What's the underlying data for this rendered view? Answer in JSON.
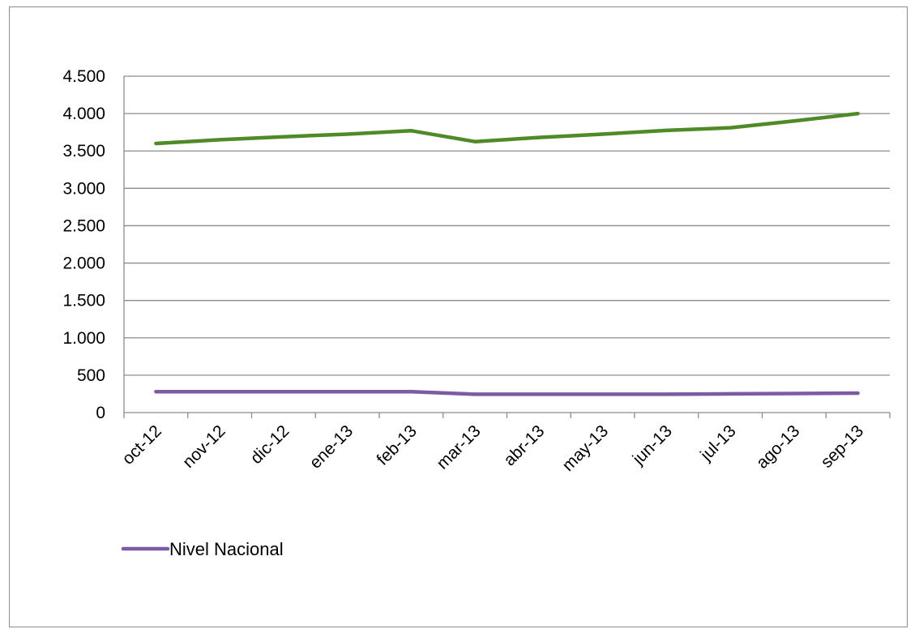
{
  "chart_data": {
    "type": "line",
    "title": "",
    "xlabel": "",
    "ylabel": "",
    "categories": [
      "oct-12",
      "nov-12",
      "dic-12",
      "ene-13",
      "feb-13",
      "mar-13",
      "abr-13",
      "may-13",
      "jun-13",
      "jul-13",
      "ago-13",
      "sep-13"
    ],
    "ylim": [
      0,
      4500
    ],
    "y_ticks": [
      0,
      500,
      1000,
      1500,
      2000,
      2500,
      3000,
      3500,
      4000,
      4500
    ],
    "y_tick_labels": [
      "0",
      "500",
      "1.000",
      "1.500",
      "2.000",
      "2.500",
      "3.000",
      "3.500",
      "4.000",
      "4.500"
    ],
    "grid": "horizontal",
    "legend_position": "bottom-left",
    "series": [
      {
        "name": "",
        "color": "#4e8a26",
        "values": [
          3600,
          3650,
          3690,
          3725,
          3770,
          3625,
          3680,
          3725,
          3775,
          3810,
          3900,
          4000
        ]
      },
      {
        "name": "Nivel Nacional",
        "color": "#7b5ba3",
        "values": [
          280,
          280,
          280,
          280,
          280,
          245,
          245,
          245,
          245,
          250,
          255,
          260
        ]
      }
    ]
  }
}
